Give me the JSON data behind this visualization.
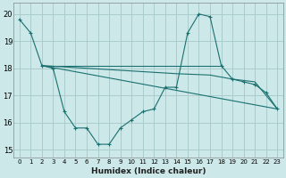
{
  "bg_color": "#cce8e8",
  "grid_color": "#aacccc",
  "line_color": "#1a7070",
  "xlabel": "Humidex (Indice chaleur)",
  "xlim": [
    -0.5,
    23.5
  ],
  "ylim": [
    14.7,
    20.4
  ],
  "yticks": [
    15,
    16,
    17,
    18,
    19,
    20
  ],
  "xticks": [
    0,
    1,
    2,
    3,
    4,
    5,
    6,
    7,
    8,
    9,
    10,
    11,
    12,
    13,
    14,
    15,
    16,
    17,
    18,
    19,
    20,
    21,
    22,
    23
  ],
  "line1_x": [
    0,
    1,
    2,
    3,
    4,
    5,
    6,
    7,
    8,
    9,
    10,
    11,
    12,
    13,
    14,
    15,
    16,
    17,
    18,
    19,
    20,
    21,
    22,
    23
  ],
  "line1_y": [
    19.8,
    19.3,
    18.1,
    18.0,
    16.4,
    15.8,
    15.8,
    15.2,
    15.2,
    15.8,
    16.1,
    16.4,
    16.5,
    17.3,
    17.3,
    19.3,
    20.0,
    19.9,
    18.1,
    17.6,
    17.5,
    17.4,
    17.1,
    16.5
  ],
  "line2_x": [
    2,
    18
  ],
  "line2_y": [
    18.1,
    18.1
  ],
  "line3_x": [
    2,
    14,
    17,
    19,
    21,
    23
  ],
  "line3_y": [
    18.1,
    17.8,
    17.75,
    17.6,
    17.5,
    16.5
  ],
  "line4_x": [
    2,
    23
  ],
  "line4_y": [
    18.1,
    16.5
  ]
}
